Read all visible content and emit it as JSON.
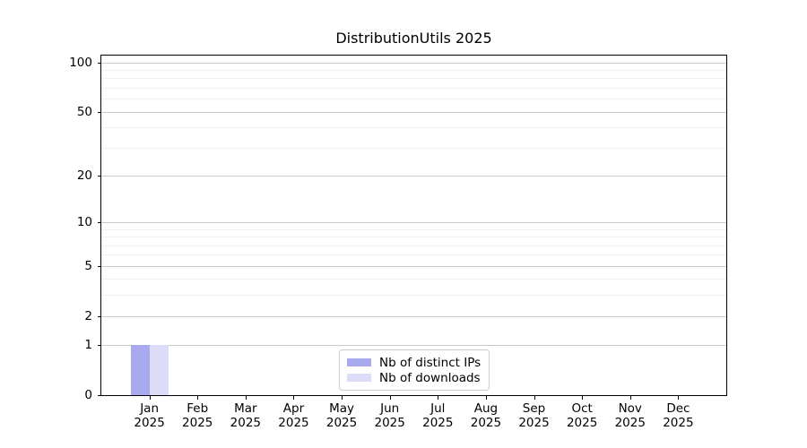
{
  "chart_data": {
    "type": "bar",
    "title": "DistributionUtils 2025",
    "categories": [
      "Jan 2025",
      "Feb 2025",
      "Mar 2025",
      "Apr 2025",
      "May 2025",
      "Jun 2025",
      "Jul 2025",
      "Aug 2025",
      "Sep 2025",
      "Oct 2025",
      "Nov 2025",
      "Dec 2025"
    ],
    "series": [
      {
        "name": "Nb of distinct IPs",
        "color": "#a9a9f0",
        "values": [
          1,
          0,
          0,
          0,
          0,
          0,
          0,
          0,
          0,
          0,
          0,
          0
        ]
      },
      {
        "name": "Nb of downloads",
        "color": "#dcdcf8",
        "values": [
          1,
          0,
          0,
          0,
          0,
          0,
          0,
          0,
          0,
          0,
          0,
          0
        ]
      }
    ],
    "xlabel": "",
    "ylabel": "",
    "yscale": "symlog",
    "ylim": [
      0,
      110
    ],
    "yticks": [
      0,
      1,
      2,
      5,
      10,
      20,
      50,
      100
    ],
    "yticks_minor": [
      3,
      4,
      6,
      7,
      8,
      9,
      30,
      40,
      60,
      70,
      80,
      90
    ],
    "grid": {
      "horizontal": true,
      "major_color": "#c9c9c9",
      "minor_color": "#f0f0f0"
    },
    "legend": {
      "location": "lower center",
      "border_color": "#cccccc",
      "background": "#ffffff"
    },
    "axis_color": "#000000"
  }
}
